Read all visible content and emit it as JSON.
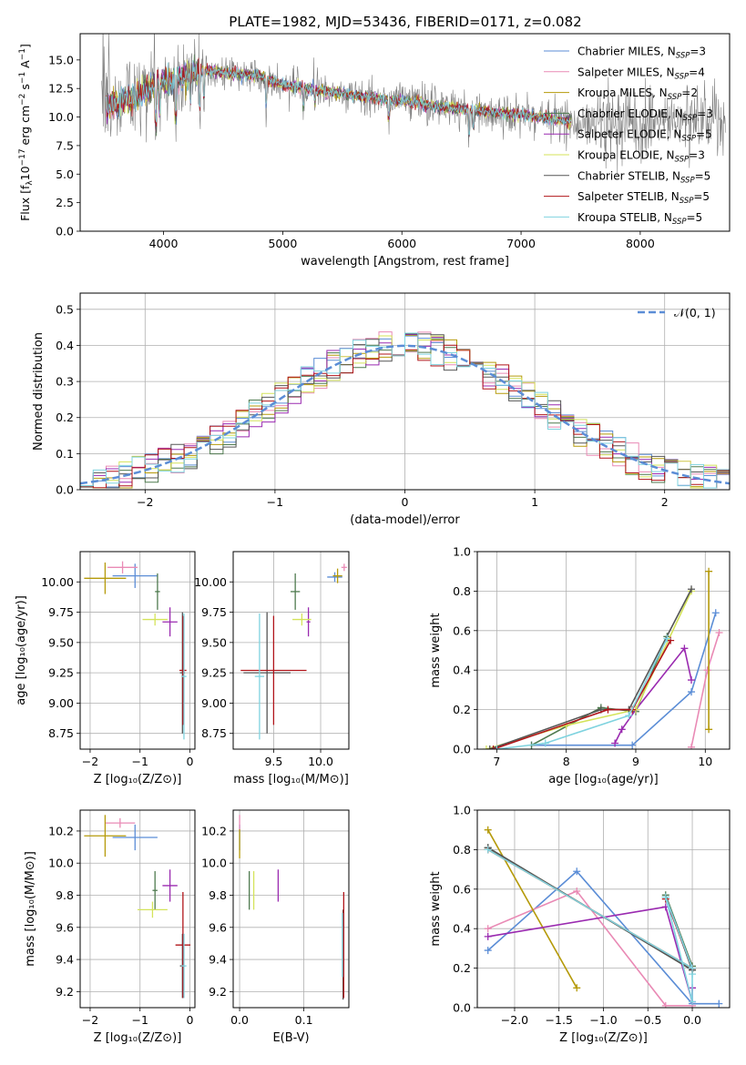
{
  "figure": {
    "title": "PLATE=1982, MJD=53436, FIBERID=0171, z=0.082"
  },
  "models": [
    {
      "name": "Chabrier MILES, N_SSP=3",
      "base": "Chabrier MILES, N",
      "sub": "SSP",
      "tail": "=3",
      "color": "#5b8dd6"
    },
    {
      "name": "Salpeter MILES, N_SSP=4",
      "base": "Salpeter MILES, N",
      "sub": "SSP",
      "tail": "=4",
      "color": "#e98ab5"
    },
    {
      "name": "Kroupa MILES, N_SSP=2",
      "base": "Kroupa MILES, N",
      "sub": "SSP",
      "tail": "=2",
      "color": "#b59a0a"
    },
    {
      "name": "Chabrier ELODIE, N_SSP=3",
      "base": "Chabrier ELODIE, N",
      "sub": "SSP",
      "tail": "=3",
      "color": "#4f7a4f"
    },
    {
      "name": "Salpeter ELODIE, N_SSP=5",
      "base": "Salpeter ELODIE, N",
      "sub": "SSP",
      "tail": "=5",
      "color": "#9a2ab0"
    },
    {
      "name": "Kroupa ELODIE, N_SSP=3",
      "base": "Kroupa ELODIE, N",
      "sub": "SSP",
      "tail": "=3",
      "color": "#d4e35a"
    },
    {
      "name": "Chabrier STELIB, N_SSP=5",
      "base": "Chabrier STELIB, N",
      "sub": "SSP",
      "tail": "=5",
      "color": "#555555"
    },
    {
      "name": "Salpeter STELIB, N_SSP=5",
      "base": "Salpeter STELIB, N",
      "sub": "SSP",
      "tail": "=5",
      "color": "#b0141a"
    },
    {
      "name": "Kroupa STELIB, N_SSP=5",
      "base": "Kroupa STELIB, N",
      "sub": "SSP",
      "tail": "=5",
      "color": "#7fd3df"
    }
  ],
  "chart_data": [
    {
      "id": "spectrum",
      "type": "line",
      "xlabel": "wavelength [Angstrom, rest frame]",
      "ylabel_parts": [
        "Flux [f",
        "λ",
        "10",
        "−17",
        " erg cm",
        "−2",
        " s",
        "−1",
        " A",
        "−1",
        "]"
      ],
      "xlim": [
        3300,
        8750
      ],
      "ylim": [
        0,
        17.3
      ],
      "xticks": [
        4000,
        5000,
        6000,
        7000,
        8000
      ],
      "yticks": [
        0.0,
        2.5,
        5.0,
        7.5,
        10.0,
        12.5,
        15.0
      ],
      "ytick_labels": [
        "0.0",
        "2.5",
        "5.0",
        "7.5",
        "10.0",
        "12.5",
        "15.0"
      ],
      "data_color": "#808080",
      "continuum": {
        "x": [
          3450,
          3550,
          3650,
          3750,
          3850,
          3950,
          4050,
          4150,
          4250,
          4400,
          4600,
          4800,
          5000,
          5200,
          5400,
          5600,
          5800,
          6000,
          6200,
          6400,
          6600,
          6800,
          7000,
          7200,
          7400
        ],
        "y": [
          10.8,
          11.0,
          11.3,
          11.8,
          12.3,
          12.8,
          13.1,
          13.5,
          13.9,
          14.0,
          13.8,
          13.6,
          12.8,
          12.5,
          12.2,
          11.9,
          11.6,
          11.4,
          11.1,
          10.8,
          10.6,
          10.4,
          10.2,
          9.9,
          9.6
        ]
      },
      "data_range": [
        3480,
        8720
      ],
      "model_range": [
        3520,
        7420
      ]
    },
    {
      "id": "residuals",
      "type": "histogram",
      "xlabel": "(data-model)/error",
      "ylabel": "Normed distribution",
      "xlim": [
        -2.5,
        2.5
      ],
      "ylim": [
        0,
        0.545
      ],
      "xticks": [
        -2,
        -1,
        0,
        1,
        2
      ],
      "xtick_labels": [
        "−2",
        "−1",
        "0",
        "1",
        "2"
      ],
      "yticks": [
        0.0,
        0.1,
        0.2,
        0.3,
        0.4,
        0.5
      ],
      "ytick_labels": [
        "0.0",
        "0.1",
        "0.2",
        "0.3",
        "0.4",
        "0.5"
      ],
      "bin_width": 0.1,
      "gaussian_legend": "𝒩(0, 1)",
      "gaussian_color": "#5b8dd6"
    },
    {
      "id": "age-vs-Z",
      "type": "scatter",
      "xlabel": "Z [log₁₀(Z/Z⊙)]",
      "ylabel": "age  [log₁₀(age/yr)]",
      "xlim": [
        -2.2,
        0.1
      ],
      "ylim": [
        8.62,
        10.25
      ],
      "xticks": [
        -2,
        -1,
        0
      ],
      "xtick_labels": [
        "−2",
        "−1",
        "0"
      ],
      "yticks": [
        8.75,
        9.0,
        9.25,
        9.5,
        9.75,
        10.0
      ],
      "ytick_labels": [
        "8.75",
        "9.00",
        "9.25",
        "9.50",
        "9.75",
        "10.00"
      ],
      "points": [
        {
          "m": 0,
          "x": -1.1,
          "xe": 0.45,
          "y": 10.05,
          "ye": 0.1
        },
        {
          "m": 1,
          "x": -1.35,
          "xe": 0.3,
          "y": 10.12,
          "ye": 0.05
        },
        {
          "m": 2,
          "x": -1.7,
          "xe": 0.42,
          "y": 10.03,
          "ye": 0.13
        },
        {
          "m": 3,
          "x": -0.65,
          "xe": 0.05,
          "y": 9.92,
          "ye": 0.15
        },
        {
          "m": 4,
          "x": -0.4,
          "xe": 0.15,
          "y": 9.67,
          "ye": 0.12
        },
        {
          "m": 5,
          "x": -0.7,
          "xe": 0.25,
          "y": 9.69,
          "ye": 0.05
        },
        {
          "m": 6,
          "x": -0.15,
          "xe": 0.05,
          "y": 9.25,
          "ye": 0.5
        },
        {
          "m": 7,
          "x": -0.14,
          "xe": 0.07,
          "y": 9.27,
          "ye": 0.45
        },
        {
          "m": 8,
          "x": -0.12,
          "xe": 0.05,
          "y": 9.22,
          "ye": 0.52
        }
      ]
    },
    {
      "id": "age-vs-mass",
      "type": "scatter",
      "xlabel": "mass [log₁₀(M/M⊙)]",
      "ylabel": "",
      "xlim": [
        9.07,
        10.3
      ],
      "ylim": [
        8.62,
        10.25
      ],
      "xticks": [
        9.5,
        10.0
      ],
      "xtick_labels": [
        "9.5",
        "10.0"
      ],
      "yticks": [
        8.75,
        9.0,
        9.25,
        9.5,
        9.75,
        10.0
      ],
      "ytick_labels": [
        "8.75",
        "9.00",
        "9.25",
        "9.50",
        "9.75",
        "10.00"
      ],
      "points": [
        {
          "m": 0,
          "x": 10.15,
          "xe": 0.08,
          "y": 10.04,
          "ye": 0.04
        },
        {
          "m": 1,
          "x": 10.25,
          "xe": 0.03,
          "y": 10.12,
          "ye": 0.03
        },
        {
          "m": 2,
          "x": 10.18,
          "xe": 0.05,
          "y": 10.05,
          "ye": 0.06
        },
        {
          "m": 3,
          "x": 9.73,
          "xe": 0.05,
          "y": 9.92,
          "ye": 0.15
        },
        {
          "m": 4,
          "x": 9.87,
          "xe": 0.02,
          "y": 9.67,
          "ye": 0.12
        },
        {
          "m": 5,
          "x": 9.8,
          "xe": 0.1,
          "y": 9.69,
          "ye": 0.05
        },
        {
          "m": 6,
          "x": 9.43,
          "xe": 0.25,
          "y": 9.25,
          "ye": 0.5
        },
        {
          "m": 7,
          "x": 9.5,
          "xe": 0.35,
          "y": 9.27,
          "ye": 0.45
        },
        {
          "m": 8,
          "x": 9.35,
          "xe": 0.05,
          "y": 9.22,
          "ye": 0.52
        }
      ]
    },
    {
      "id": "weight-vs-age",
      "type": "line",
      "xlabel": "age  [log₁₀(age/yr)]",
      "ylabel": "mass weight",
      "xlim": [
        6.72,
        10.35
      ],
      "ylim": [
        0,
        1.0
      ],
      "xticks": [
        7,
        8,
        9,
        10
      ],
      "xtick_labels": [
        "7",
        "8",
        "9",
        "10"
      ],
      "yticks": [
        0.0,
        0.2,
        0.4,
        0.6,
        0.8,
        1.0
      ],
      "ytick_labels": [
        "0.0",
        "0.2",
        "0.4",
        "0.6",
        "0.8",
        "1.0"
      ],
      "series": [
        {
          "m": 0,
          "x": [
            7.5,
            8.95,
            9.8,
            10.15
          ],
          "y": [
            0.02,
            0.02,
            0.29,
            0.69
          ]
        },
        {
          "m": 1,
          "x": [
            9.8,
            10.03,
            10.2
          ],
          "y": [
            0.01,
            0.4,
            0.59
          ]
        },
        {
          "m": 2,
          "x": [
            10.05,
            10.05
          ],
          "y": [
            0.1,
            0.9
          ]
        },
        {
          "m": 3,
          "x": [
            7.5,
            8.5,
            9.0,
            9.45
          ],
          "y": [
            0.02,
            0.21,
            0.19,
            0.57
          ]
        },
        {
          "m": 4,
          "x": [
            8.7,
            8.8,
            9.0,
            9.7,
            9.8
          ],
          "y": [
            0.03,
            0.1,
            0.2,
            0.51,
            0.35
          ]
        },
        {
          "m": 5,
          "x": [
            6.85,
            8.0,
            9.0,
            9.8
          ],
          "y": [
            0.0,
            0.12,
            0.2,
            0.8
          ]
        },
        {
          "m": 6,
          "x": [
            6.9,
            8.5,
            8.9,
            9.8
          ],
          "y": [
            0.0,
            0.2,
            0.2,
            0.81
          ]
        },
        {
          "m": 7,
          "x": [
            6.95,
            8.6,
            8.95,
            9.5
          ],
          "y": [
            0.0,
            0.2,
            0.2,
            0.55
          ]
        },
        {
          "m": 8,
          "x": [
            7.0,
            7.7,
            8.9,
            9.45
          ],
          "y": [
            0.0,
            0.03,
            0.17,
            0.56
          ]
        }
      ]
    },
    {
      "id": "mass-vs-Z",
      "type": "scatter",
      "xlabel": "Z [log₁₀(Z/Z⊙)]",
      "ylabel": "mass [log₁₀(M/M⊙)]",
      "xlim": [
        -2.2,
        0.1
      ],
      "ylim": [
        9.1,
        10.33
      ],
      "xticks": [
        -2,
        -1,
        0
      ],
      "xtick_labels": [
        "−2",
        "−1",
        "0"
      ],
      "yticks": [
        9.2,
        9.4,
        9.6,
        9.8,
        10.0,
        10.2
      ],
      "ytick_labels": [
        "9.2",
        "9.4",
        "9.6",
        "9.8",
        "10.0",
        "10.2"
      ],
      "points": [
        {
          "m": 0,
          "x": -1.1,
          "xe": 0.45,
          "y": 10.16,
          "ye": 0.08
        },
        {
          "m": 1,
          "x": -1.4,
          "xe": 0.3,
          "y": 10.25,
          "ye": 0.03
        },
        {
          "m": 2,
          "x": -1.7,
          "xe": 0.42,
          "y": 10.17,
          "ye": 0.13
        },
        {
          "m": 3,
          "x": -0.7,
          "xe": 0.05,
          "y": 9.83,
          "ye": 0.12
        },
        {
          "m": 4,
          "x": -0.4,
          "xe": 0.15,
          "y": 9.86,
          "ye": 0.1
        },
        {
          "m": 5,
          "x": -0.75,
          "xe": 0.3,
          "y": 9.71,
          "ye": 0.05
        },
        {
          "m": 6,
          "x": -0.15,
          "xe": 0.05,
          "y": 9.36,
          "ye": 0.2
        },
        {
          "m": 7,
          "x": -0.14,
          "xe": 0.15,
          "y": 9.49,
          "ye": 0.33
        },
        {
          "m": 8,
          "x": -0.12,
          "xe": 0.05,
          "y": 9.36,
          "ye": 0.2
        }
      ]
    },
    {
      "id": "mass-vs-ebv",
      "type": "scatter",
      "xlabel": "E(B-V)",
      "ylabel": "",
      "xlim": [
        -0.01,
        0.17
      ],
      "ylim": [
        9.1,
        10.33
      ],
      "xticks": [
        0.0,
        0.1
      ],
      "xtick_labels": [
        "0.0",
        "0.1"
      ],
      "yticks": [
        9.2,
        9.4,
        9.6,
        9.8,
        10.0,
        10.2
      ],
      "ytick_labels": [
        "9.2",
        "9.4",
        "9.6",
        "9.8",
        "10.0",
        "10.2"
      ],
      "points": [
        {
          "m": 0,
          "x": 0.0,
          "xe": 0,
          "y": 10.16,
          "ye": 0.08
        },
        {
          "m": 1,
          "x": 0.0,
          "xe": 0,
          "y": 10.25,
          "ye": 0.05
        },
        {
          "m": 2,
          "x": 0.0,
          "xe": 0,
          "y": 10.12,
          "ye": 0.09
        },
        {
          "m": 3,
          "x": 0.015,
          "xe": 0,
          "y": 9.83,
          "ye": 0.12
        },
        {
          "m": 4,
          "x": 0.06,
          "xe": 0,
          "y": 9.86,
          "ye": 0.1
        },
        {
          "m": 5,
          "x": 0.022,
          "xe": 0,
          "y": 9.83,
          "ye": 0.12
        },
        {
          "m": 6,
          "x": 0.161,
          "xe": 0,
          "y": 9.43,
          "ye": 0.28
        },
        {
          "m": 7,
          "x": 0.162,
          "xe": 0,
          "y": 9.49,
          "ye": 0.33
        },
        {
          "m": 8,
          "x": 0.16,
          "xe": 0,
          "y": 9.49,
          "ye": 0.2
        }
      ]
    },
    {
      "id": "weight-vs-Z",
      "type": "line",
      "xlabel": "Z [log₁₀(Z/Z⊙)]",
      "ylabel": "mass weight",
      "xlim": [
        -2.42,
        0.42
      ],
      "ylim": [
        0,
        1.0
      ],
      "xticks": [
        -2.0,
        -1.5,
        -1.0,
        -0.5,
        0.0
      ],
      "xtick_labels": [
        "−2.0",
        "−1.5",
        "−1.0",
        "−0.5",
        "0.0"
      ],
      "yticks": [
        0.0,
        0.2,
        0.4,
        0.6,
        0.8,
        1.0
      ],
      "ytick_labels": [
        "0.0",
        "0.2",
        "0.4",
        "0.6",
        "0.8",
        "1.0"
      ],
      "series": [
        {
          "m": 0,
          "x": [
            -2.3,
            -1.3,
            0.0,
            0.3
          ],
          "y": [
            0.29,
            0.69,
            0.02,
            0.02
          ]
        },
        {
          "m": 1,
          "x": [
            -2.3,
            -1.3,
            -0.3,
            0.0
          ],
          "y": [
            0.4,
            0.59,
            0.01,
            0.01
          ]
        },
        {
          "m": 2,
          "x": [
            -2.3,
            -1.3
          ],
          "y": [
            0.9,
            0.1
          ]
        },
        {
          "m": 3,
          "x": [
            -2.3,
            0.0,
            -0.3,
            0.0
          ],
          "y": [
            0.81,
            0.19,
            0.57,
            0.21
          ]
        },
        {
          "m": 4,
          "x": [
            -2.3,
            -0.3,
            0.0,
            0.0
          ],
          "y": [
            0.36,
            0.51,
            0.03,
            0.1
          ]
        },
        {
          "m": 5,
          "x": [
            -2.3,
            0.0
          ],
          "y": [
            0.8,
            0.2
          ]
        },
        {
          "m": 6,
          "x": [
            -2.3,
            0.0,
            -0.3,
            0.0
          ],
          "y": [
            0.81,
            0.19,
            0.56,
            0.2
          ]
        },
        {
          "m": 7,
          "x": [
            -2.3,
            0.0,
            -0.3,
            0.0
          ],
          "y": [
            0.8,
            0.2,
            0.55,
            0.2
          ]
        },
        {
          "m": 8,
          "x": [
            -2.3,
            0.0,
            -0.3,
            0.0,
            0.0
          ],
          "y": [
            0.8,
            0.2,
            0.56,
            0.03,
            0.17
          ]
        }
      ]
    }
  ]
}
